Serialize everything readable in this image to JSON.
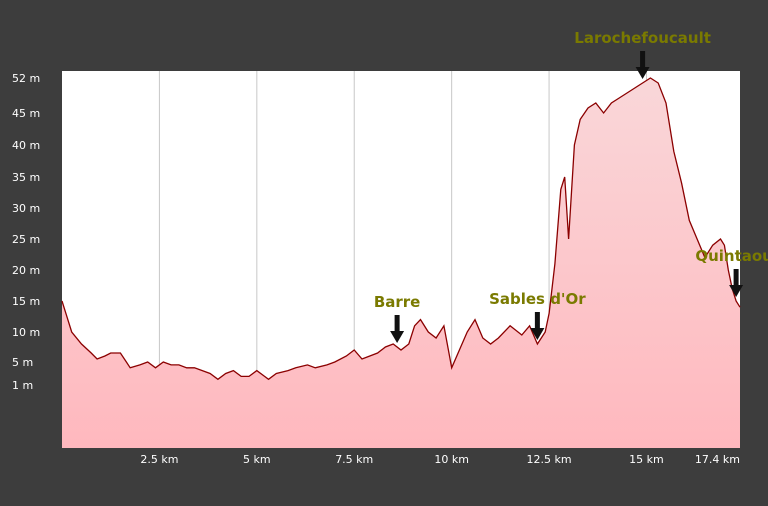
{
  "colors": {
    "background": "#3d3d3d",
    "plot_background": "#ffffff",
    "grid": "#c8c8c8",
    "line": "#8b0000",
    "fill_top": "#f7c3c6",
    "fill_bottom": "#ffb8be",
    "annotation": "#7a7a00",
    "arrow": "#111111",
    "tick_text": "#ffffff"
  },
  "chart_data": {
    "type": "area",
    "title": "",
    "xlabel": "",
    "ylabel": "",
    "grid": true,
    "legend": "none",
    "xlim": [
      0,
      17.4
    ],
    "ylim_ticks": [
      "52 m",
      "45 m",
      "40 m",
      "35 m",
      "30 m",
      "25 m",
      "20 m",
      "15 m",
      "10 m",
      "5 m",
      "1 m"
    ],
    "y_tick_values": [
      52,
      45,
      40,
      35,
      30,
      25,
      20,
      15,
      10,
      5,
      1
    ],
    "x_ticks": [
      {
        "value": 2.5,
        "label": "2.5 km"
      },
      {
        "value": 5,
        "label": "5 km"
      },
      {
        "value": 7.5,
        "label": "7.5 km"
      },
      {
        "value": 10,
        "label": "10 km"
      },
      {
        "value": 12.5,
        "label": "12.5 km"
      },
      {
        "value": 15,
        "label": "15 km"
      },
      {
        "value": 17.4,
        "label": "17.4 km"
      }
    ],
    "series": [
      {
        "x": [
          0,
          0.1,
          0.25,
          0.5,
          0.75,
          0.9,
          1.1,
          1.25,
          1.5,
          1.75,
          2.0,
          2.2,
          2.4,
          2.6,
          2.8,
          3.0,
          3.2,
          3.4,
          3.6,
          3.8,
          4.0,
          4.2,
          4.4,
          4.6,
          4.8,
          5.0,
          5.2,
          5.3,
          5.5,
          5.8,
          6.0,
          6.3,
          6.5,
          6.8,
          7.0,
          7.3,
          7.5,
          7.7,
          7.9,
          8.1,
          8.3,
          8.5,
          8.7,
          8.9,
          9.05,
          9.2,
          9.4,
          9.6,
          9.8,
          10.0,
          10.2,
          10.4,
          10.6,
          10.8,
          11.0,
          11.2,
          11.5,
          11.8,
          12.0,
          12.2,
          12.4,
          12.5,
          12.65,
          12.8,
          12.9,
          13.0,
          13.15,
          13.3,
          13.5,
          13.7,
          13.9,
          14.1,
          14.3,
          14.5,
          14.7,
          14.9,
          15.1,
          15.3,
          15.5,
          15.7,
          15.9,
          16.1,
          16.3,
          16.5,
          16.7,
          16.9,
          17.0,
          17.1,
          17.2,
          17.3,
          17.4
        ],
        "y": [
          15,
          13,
          10,
          8,
          6.5,
          5.5,
          6,
          6.5,
          6.5,
          4,
          4.5,
          5,
          4,
          5,
          4.5,
          4.5,
          4,
          4,
          3.5,
          3,
          2,
          3,
          3.5,
          2.5,
          2.5,
          3.5,
          2.5,
          2,
          3,
          3.5,
          4,
          4.5,
          4,
          4.5,
          5,
          6,
          7,
          5.5,
          6,
          6.5,
          7.5,
          8,
          7,
          8,
          11,
          12,
          10,
          9,
          11,
          4,
          7,
          10,
          12,
          9,
          8,
          9,
          11,
          9.5,
          11,
          8,
          10,
          13,
          21,
          33,
          35,
          25,
          40,
          44,
          46,
          47,
          45,
          47,
          48,
          49,
          50,
          51,
          52,
          51,
          47,
          39,
          34,
          28,
          25,
          22,
          24,
          25,
          24,
          20,
          17,
          15,
          14
        ]
      }
    ],
    "annotations": [
      {
        "label": "Barre",
        "x": 8.6
      },
      {
        "label": "Sables d'Or",
        "x": 12.2
      },
      {
        "label": "Larochefoucault",
        "x": 14.9
      },
      {
        "label": "Quintaou",
        "x": 17.3
      }
    ]
  }
}
